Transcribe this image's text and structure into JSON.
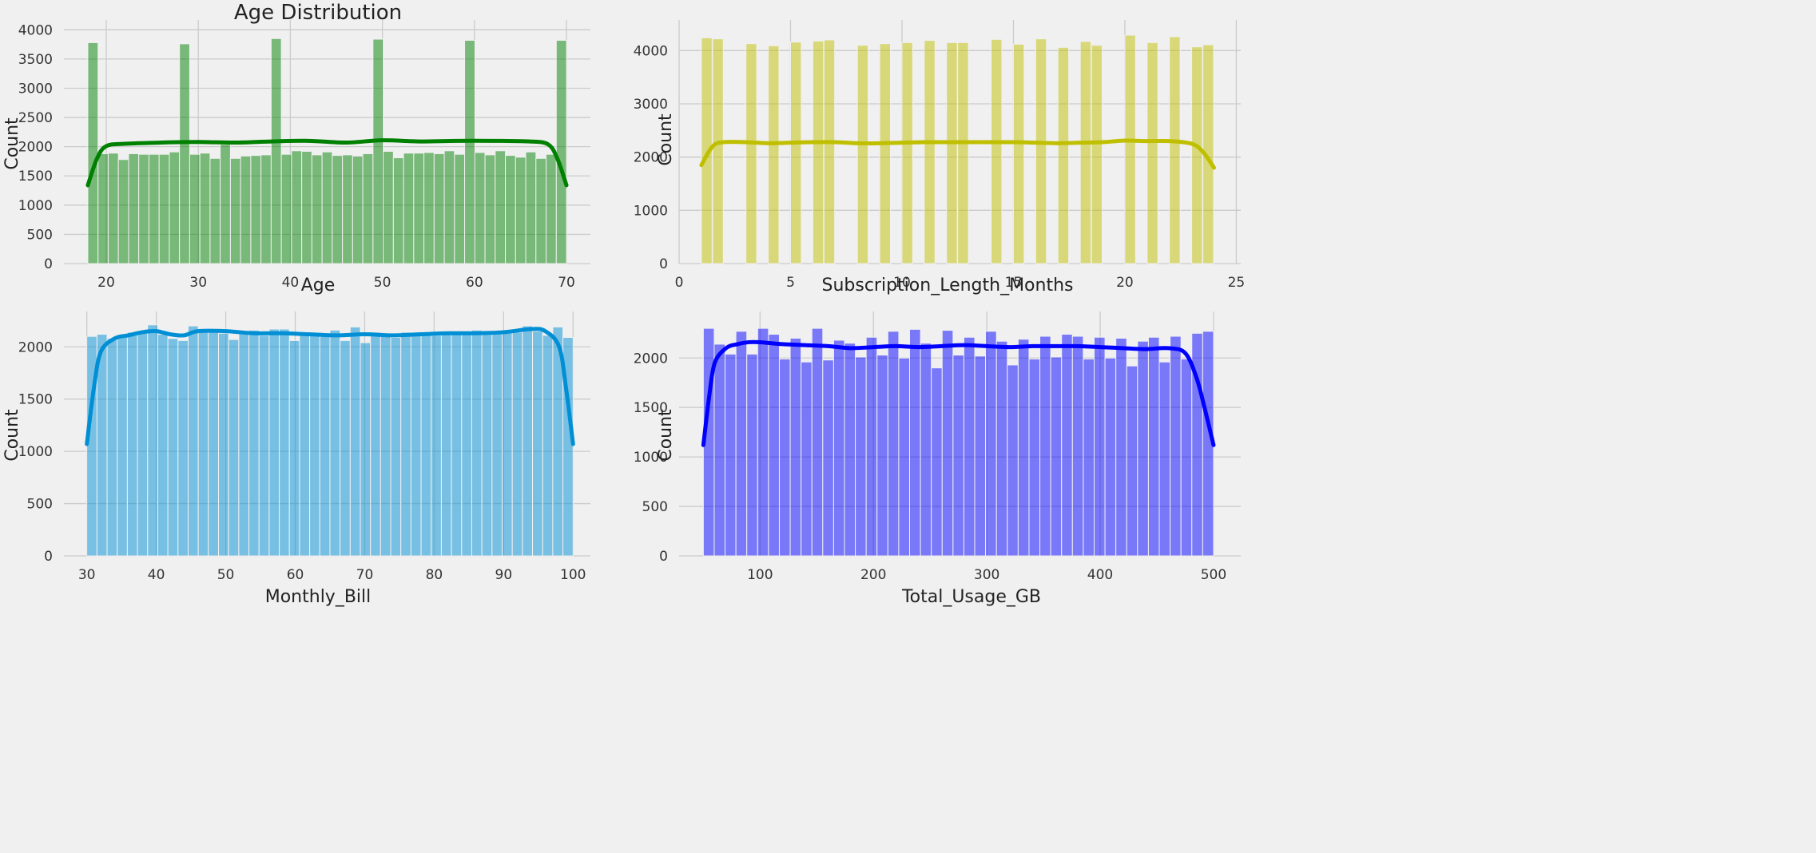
{
  "figure": {
    "background": "#f0f0f0",
    "grid_color": "#cbcbcb"
  },
  "chart_data": [
    {
      "type": "bar",
      "subtype": "histogram_with_kde",
      "title": "Age Distribution",
      "xlabel": "Age",
      "ylabel": "Count",
      "xlim": [
        15.4,
        72.6
      ],
      "ylim": [
        0,
        4100
      ],
      "xticks": [
        20,
        30,
        40,
        50,
        60,
        70
      ],
      "yticks": [
        0,
        500,
        1000,
        1500,
        2000,
        2500,
        3000,
        3500,
        4000
      ],
      "bar_color": "#008000",
      "bar_alpha": 0.5,
      "kde_color": "#008000",
      "bins": {
        "start": 18,
        "end": 70
      },
      "values": [
        3780,
        1880,
        1890,
        1780,
        1880,
        1870,
        1870,
        1870,
        1910,
        3760,
        1870,
        1890,
        1800,
        2040,
        1800,
        1840,
        1850,
        1860,
        3850,
        1870,
        1930,
        1920,
        1860,
        1910,
        1850,
        1860,
        1840,
        1880,
        3840,
        1920,
        1810,
        1890,
        1890,
        1900,
        1880,
        1930,
        1870,
        3820,
        1900,
        1860,
        1930,
        1850,
        1820,
        1910,
        1800,
        1870,
        3820
      ],
      "kde": [
        [
          18,
          1340
        ],
        [
          19,
          1800
        ],
        [
          20,
          2010
        ],
        [
          22,
          2050
        ],
        [
          26,
          2070
        ],
        [
          30,
          2080
        ],
        [
          34,
          2070
        ],
        [
          38,
          2090
        ],
        [
          42,
          2100
        ],
        [
          46,
          2070
        ],
        [
          50,
          2110
        ],
        [
          54,
          2090
        ],
        [
          58,
          2100
        ],
        [
          62,
          2100
        ],
        [
          66,
          2090
        ],
        [
          68,
          2040
        ],
        [
          69,
          1800
        ],
        [
          70,
          1340
        ]
      ]
    },
    {
      "type": "bar",
      "subtype": "histogram_with_kde",
      "title": "",
      "xlabel": "Subscription_Length_Months",
      "ylabel": "Count",
      "xlim": [
        0,
        25.2
      ],
      "ylim": [
        0,
        4500
      ],
      "xticks": [
        0,
        5,
        10,
        15,
        20,
        25
      ],
      "yticks": [
        0,
        1000,
        2000,
        3000,
        4000
      ],
      "bar_color": "#bfbf00",
      "bar_alpha": 0.5,
      "kde_color": "#bfbf00",
      "bars": [
        [
          1,
          4240
        ],
        [
          1.5,
          4220
        ],
        [
          3,
          4130
        ],
        [
          4,
          4090
        ],
        [
          5,
          4160
        ],
        [
          6,
          4180
        ],
        [
          6.5,
          4200
        ],
        [
          8,
          4100
        ],
        [
          9,
          4130
        ],
        [
          10,
          4150
        ],
        [
          11,
          4190
        ],
        [
          12,
          4150
        ],
        [
          12.5,
          4150
        ],
        [
          14,
          4210
        ],
        [
          15,
          4120
        ],
        [
          16,
          4220
        ],
        [
          17,
          4060
        ],
        [
          18,
          4170
        ],
        [
          18.5,
          4100
        ],
        [
          20,
          4290
        ],
        [
          21,
          4150
        ],
        [
          22,
          4260
        ],
        [
          23,
          4070
        ],
        [
          23.5,
          4110
        ]
      ],
      "bar_width": 0.48,
      "kde": [
        [
          1,
          1850
        ],
        [
          1.5,
          2200
        ],
        [
          2,
          2280
        ],
        [
          3,
          2280
        ],
        [
          4,
          2260
        ],
        [
          5,
          2270
        ],
        [
          6,
          2280
        ],
        [
          7,
          2280
        ],
        [
          8,
          2260
        ],
        [
          9,
          2260
        ],
        [
          10,
          2270
        ],
        [
          11,
          2280
        ],
        [
          12,
          2280
        ],
        [
          13,
          2280
        ],
        [
          14,
          2280
        ],
        [
          15,
          2280
        ],
        [
          16,
          2270
        ],
        [
          17,
          2260
        ],
        [
          18,
          2270
        ],
        [
          19,
          2280
        ],
        [
          20,
          2310
        ],
        [
          21,
          2300
        ],
        [
          22,
          2300
        ],
        [
          23,
          2250
        ],
        [
          23.5,
          2100
        ],
        [
          24,
          1800
        ]
      ]
    },
    {
      "type": "bar",
      "subtype": "histogram_with_kde",
      "title": "",
      "xlabel": "Monthly_Bill",
      "ylabel": "Count",
      "xlim": [
        26.7,
        102.5
      ],
      "ylim": [
        0,
        2300
      ],
      "xticks": [
        30,
        40,
        50,
        60,
        70,
        80,
        90,
        100
      ],
      "yticks": [
        0,
        500,
        1000,
        1500,
        2000
      ],
      "bar_color": "#008fd5",
      "bar_alpha": 0.5,
      "kde_color": "#008fd5",
      "bins": {
        "start": 30,
        "end": 100
      },
      "values": [
        2100,
        2120,
        2080,
        2100,
        2140,
        2130,
        2210,
        2120,
        2080,
        2060,
        2200,
        2150,
        2140,
        2130,
        2070,
        2140,
        2160,
        2110,
        2170,
        2170,
        2060,
        2130,
        2120,
        2100,
        2160,
        2060,
        2190,
        2040,
        2140,
        2130,
        2090,
        2140,
        2130,
        2110,
        2110,
        2140,
        2140,
        2130,
        2160,
        2150,
        2150,
        2140,
        2140,
        2200,
        2150,
        2110,
        2190,
        2090
      ],
      "kde": [
        [
          30,
          1070
        ],
        [
          31,
          1600
        ],
        [
          32,
          1950
        ],
        [
          34,
          2080
        ],
        [
          36,
          2110
        ],
        [
          38,
          2140
        ],
        [
          40,
          2150
        ],
        [
          42,
          2120
        ],
        [
          44,
          2110
        ],
        [
          46,
          2150
        ],
        [
          50,
          2150
        ],
        [
          54,
          2130
        ],
        [
          58,
          2130
        ],
        [
          62,
          2120
        ],
        [
          66,
          2110
        ],
        [
          70,
          2120
        ],
        [
          74,
          2110
        ],
        [
          78,
          2120
        ],
        [
          82,
          2130
        ],
        [
          86,
          2130
        ],
        [
          90,
          2140
        ],
        [
          94,
          2170
        ],
        [
          96,
          2150
        ],
        [
          98,
          2000
        ],
        [
          99,
          1600
        ],
        [
          100,
          1070
        ]
      ]
    },
    {
      "type": "bar",
      "subtype": "histogram_with_kde",
      "title": "",
      "xlabel": "Total_Usage_GB",
      "ylabel": "Count",
      "xlim": [
        28.6,
        524
      ],
      "ylim": [
        0,
        2430
      ],
      "xticks": [
        100,
        200,
        300,
        400,
        500
      ],
      "yticks": [
        0,
        500,
        1000,
        1500,
        2000
      ],
      "bar_color": "#0000ff",
      "bar_alpha": 0.5,
      "kde_color": "#0000ff",
      "bins": {
        "start": 50,
        "end": 500
      },
      "values": [
        2300,
        2140,
        2040,
        2270,
        2040,
        2300,
        2240,
        1990,
        2200,
        1960,
        2300,
        1980,
        2180,
        2150,
        2010,
        2210,
        2030,
        2270,
        2000,
        2290,
        2150,
        1900,
        2280,
        2030,
        2210,
        2020,
        2270,
        2170,
        1930,
        2190,
        1990,
        2220,
        2010,
        2240,
        2220,
        1990,
        2210,
        2000,
        2200,
        1920,
        2170,
        2210,
        1960,
        2220,
        1990,
        2250,
        2270
      ],
      "kde": [
        [
          50,
          1120
        ],
        [
          55,
          1600
        ],
        [
          60,
          1950
        ],
        [
          70,
          2100
        ],
        [
          80,
          2140
        ],
        [
          90,
          2160
        ],
        [
          100,
          2160
        ],
        [
          120,
          2140
        ],
        [
          140,
          2130
        ],
        [
          160,
          2120
        ],
        [
          180,
          2100
        ],
        [
          200,
          2110
        ],
        [
          220,
          2120
        ],
        [
          240,
          2110
        ],
        [
          260,
          2120
        ],
        [
          280,
          2130
        ],
        [
          300,
          2120
        ],
        [
          320,
          2110
        ],
        [
          340,
          2120
        ],
        [
          360,
          2120
        ],
        [
          380,
          2120
        ],
        [
          400,
          2110
        ],
        [
          420,
          2100
        ],
        [
          440,
          2090
        ],
        [
          460,
          2100
        ],
        [
          475,
          2050
        ],
        [
          485,
          1800
        ],
        [
          492,
          1500
        ],
        [
          500,
          1120
        ]
      ]
    }
  ]
}
